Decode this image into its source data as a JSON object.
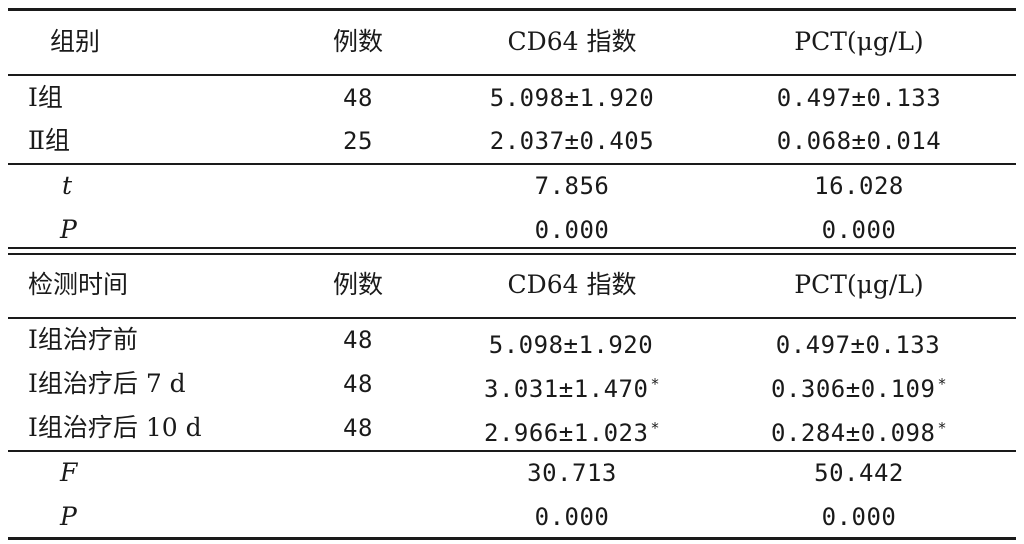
{
  "table1": {
    "headers": [
      "组别",
      "例数",
      "CD64 指数",
      "PCT(μg/L)"
    ],
    "rows": [
      {
        "group": "Ⅰ组",
        "n": "48",
        "cd64": "5.098±1.920",
        "pct": "0.497±0.133"
      },
      {
        "group": "Ⅱ组",
        "n": "25",
        "cd64": "2.037±0.405",
        "pct": "0.068±0.014"
      }
    ],
    "stats": [
      {
        "label": "t",
        "cd64": "7.856",
        "pct": "16.028"
      },
      {
        "label": "P",
        "cd64": "0.000",
        "pct": "0.000"
      }
    ]
  },
  "table2": {
    "headers": [
      "检测时间",
      "例数",
      "CD64 指数",
      "PCT(μg/L)"
    ],
    "rows": [
      {
        "group": "Ⅰ组治疗前",
        "n": "48",
        "cd64": "5.098±1.920",
        "cd64_mark": "",
        "pct": "0.497±0.133",
        "pct_mark": ""
      },
      {
        "group": "Ⅰ组治疗后 7 d",
        "n": "48",
        "cd64": "3.031±1.470",
        "cd64_mark": "*",
        "pct": "0.306±0.109",
        "pct_mark": "*"
      },
      {
        "group": "Ⅰ组治疗后 10 d",
        "n": "48",
        "cd64": "2.966±1.023",
        "cd64_mark": "*",
        "pct": "0.284±0.098",
        "pct_mark": "*"
      }
    ],
    "stats": [
      {
        "label": "F",
        "cd64": "30.713",
        "pct": "50.442"
      },
      {
        "label": "P",
        "cd64": "0.000",
        "pct": "0.000"
      }
    ]
  }
}
